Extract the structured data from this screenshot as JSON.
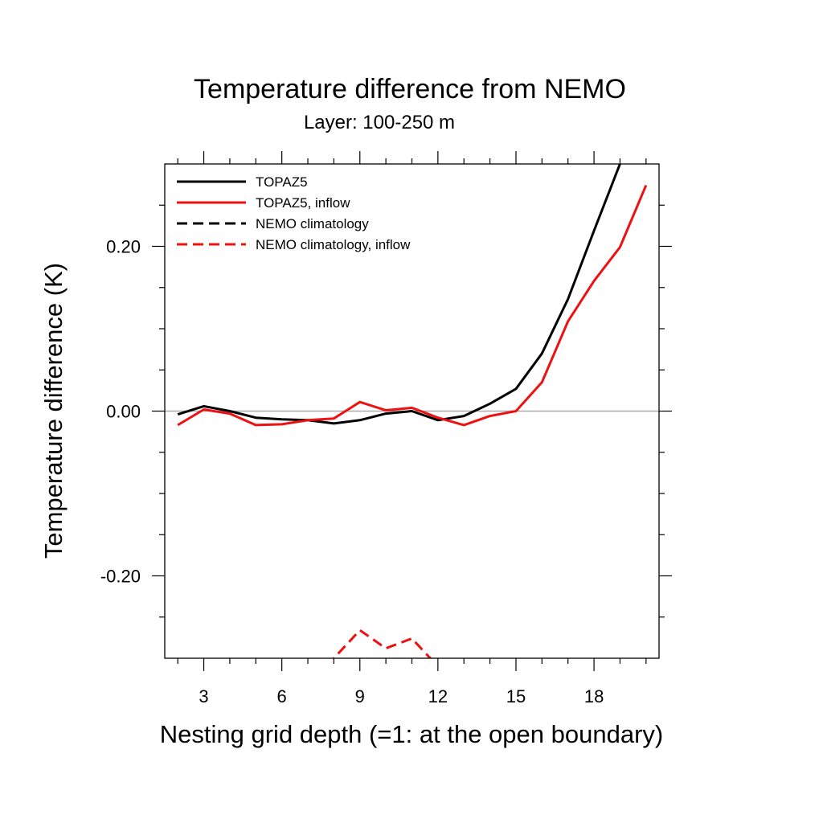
{
  "chart_data": {
    "type": "line",
    "title": "Temperature difference from NEMO",
    "subtitle": "Layer: 100-250 m",
    "xlabel": "Nesting grid depth (=1: at the open boundary)",
    "ylabel": "Temperature difference (K)",
    "xlim": [
      1.5,
      20.5
    ],
    "ylim": [
      -0.3,
      0.3
    ],
    "x_major_ticks": [
      3,
      6,
      9,
      12,
      15,
      18
    ],
    "x_tick_labels": [
      "3",
      "6",
      "9",
      "12",
      "15",
      "18"
    ],
    "y_major_ticks": [
      -0.2,
      0.0,
      0.2
    ],
    "y_tick_labels": [
      "-0.20",
      "0.00",
      "0.20"
    ],
    "zero_line": true,
    "grid": false,
    "legend_position": "top-left",
    "series": [
      {
        "name": "TOPAZ5",
        "color": "#000000",
        "dash": "solid",
        "x": [
          2,
          3,
          4,
          5,
          6,
          7,
          8,
          9,
          10,
          11,
          12,
          13,
          14,
          15,
          16,
          17,
          18,
          19,
          20
        ],
        "values": [
          -0.004,
          0.006,
          0.0,
          -0.008,
          -0.01,
          -0.011,
          -0.015,
          -0.011,
          -0.003,
          0.0,
          -0.011,
          -0.006,
          0.009,
          0.027,
          0.07,
          0.136,
          0.219,
          0.3,
          0.33
        ]
      },
      {
        "name": "TOPAZ5, inflow",
        "color": "#ee1111",
        "dash": "solid",
        "x": [
          2,
          3,
          4,
          5,
          6,
          7,
          8,
          9,
          10,
          11,
          12,
          13,
          14,
          15,
          16,
          17,
          18,
          19,
          20
        ],
        "values": [
          -0.017,
          0.002,
          -0.003,
          -0.017,
          -0.016,
          -0.011,
          -0.009,
          0.011,
          0.001,
          0.004,
          -0.008,
          -0.017,
          -0.006,
          0.0,
          0.035,
          0.109,
          0.158,
          0.199,
          0.274
        ]
      },
      {
        "name": "NEMO climatology",
        "color": "#000000",
        "dash": "dashed",
        "x": [],
        "values": []
      },
      {
        "name": "NEMO climatology, inflow",
        "color": "#ee1111",
        "dash": "dashed",
        "x": [
          7,
          8,
          9,
          10,
          11,
          12,
          13
        ],
        "values": [
          -0.34,
          -0.3,
          -0.266,
          -0.288,
          -0.276,
          -0.31,
          -0.35
        ]
      }
    ]
  }
}
